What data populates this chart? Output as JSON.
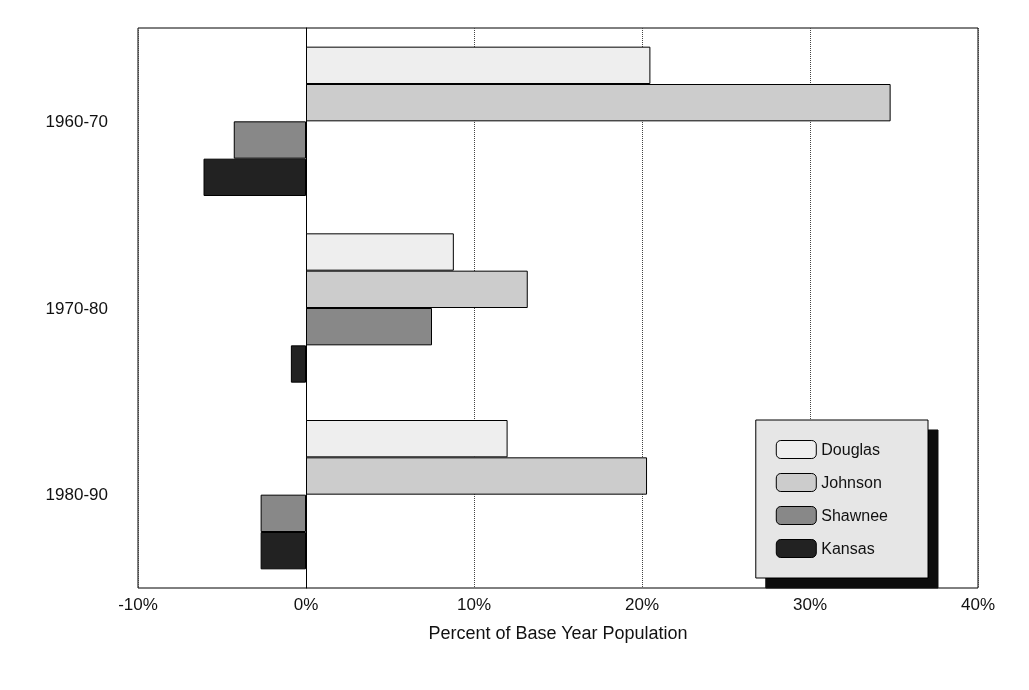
{
  "chart_data": {
    "type": "bar",
    "orientation": "horizontal",
    "xlabel": "Percent of Base Year Population",
    "categories": [
      "1960-70",
      "1970-80",
      "1980-90"
    ],
    "series": [
      {
        "name": "Douglas",
        "color": "#eeeeee",
        "values": [
          20.5,
          8.8,
          12.0
        ]
      },
      {
        "name": "Johnson",
        "color": "#cccccc",
        "values": [
          34.8,
          13.2,
          20.3
        ]
      },
      {
        "name": "Shawnee",
        "color": "#888888",
        "values": [
          -4.3,
          7.5,
          -2.7
        ]
      },
      {
        "name": "Kansas",
        "color": "#222222",
        "values": [
          -6.1,
          -0.9,
          -2.7
        ]
      }
    ],
    "xlim": [
      -10,
      40
    ],
    "xticks": [
      {
        "value": -10,
        "label": "-10%"
      },
      {
        "value": 0,
        "label": "0%"
      },
      {
        "value": 10,
        "label": "10%"
      },
      {
        "value": 20,
        "label": "20%"
      },
      {
        "value": 30,
        "label": "30%"
      },
      {
        "value": 40,
        "label": "40%"
      }
    ],
    "grid": "x",
    "legend": "bottom right"
  }
}
